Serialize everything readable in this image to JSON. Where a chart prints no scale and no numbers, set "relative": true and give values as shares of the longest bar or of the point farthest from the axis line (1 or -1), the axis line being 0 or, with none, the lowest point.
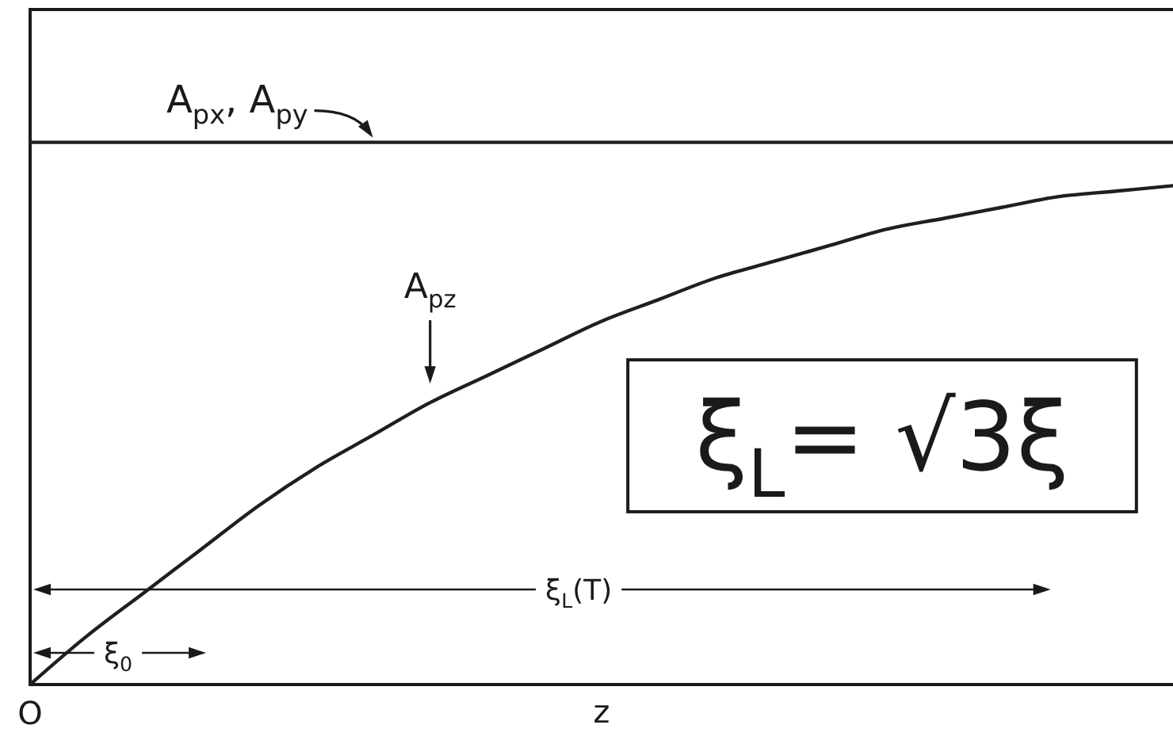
{
  "chart_data": {
    "type": "line",
    "relative": true,
    "categories": [
      null,
      null,
      null,
      null,
      null,
      null,
      null,
      null,
      null,
      null,
      null,
      null,
      null,
      null,
      null,
      null,
      null,
      null,
      null,
      null,
      null
    ],
    "xlabel": "z",
    "series": [
      {
        "name": "A$_{px}$, A$_{py}$",
        "color": "#1f1f1f",
        "values": [
          1,
          1,
          1,
          1,
          1,
          1,
          1,
          1,
          1,
          1,
          1,
          1,
          1,
          1,
          1,
          1,
          1,
          1,
          1,
          1,
          1
        ]
      },
      {
        "name": "A$_{pz}$",
        "color": "#1f1f1f",
        "values": [
          0,
          0.09,
          0.17,
          0.25,
          0.33,
          0.4,
          0.46,
          0.52,
          0.57,
          0.62,
          0.67,
          0.71,
          0.75,
          0.78,
          0.81,
          0.84,
          0.86,
          0.88,
          0.9,
          0.91,
          0.92
        ]
      }
    ],
    "annotations": [
      "ξ$_{L}$= √3ξ",
      "ξ$_{L}$(T)",
      "ξ$_{0}$",
      "O"
    ]
  }
}
